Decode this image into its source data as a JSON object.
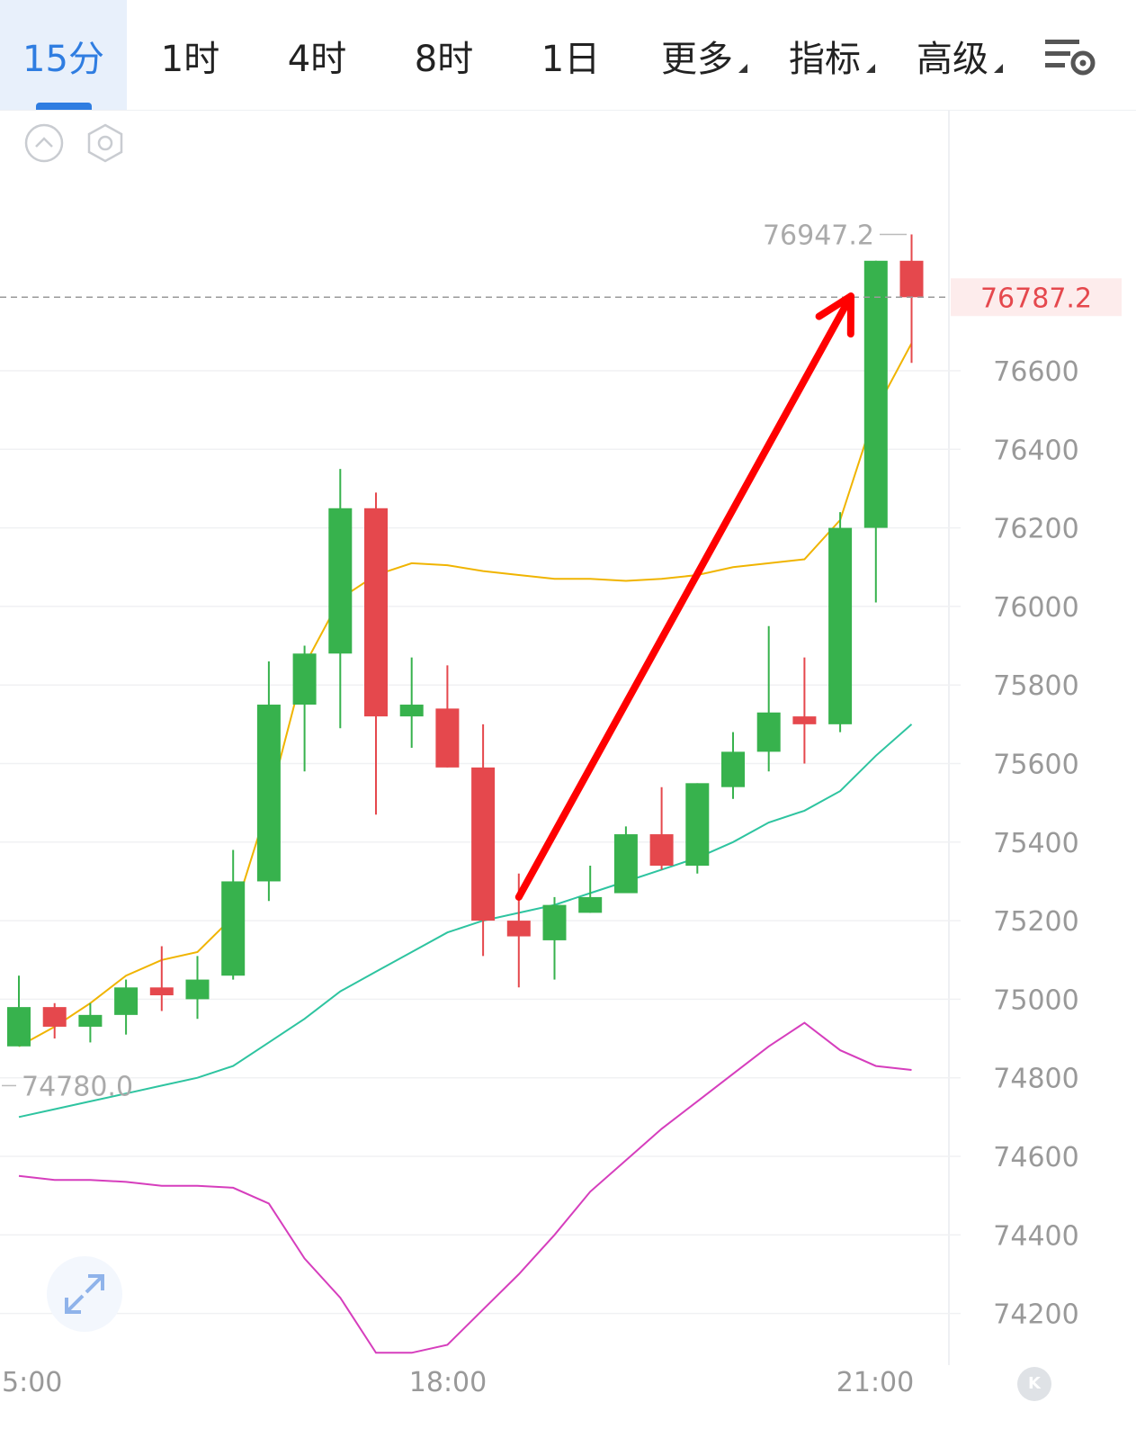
{
  "tabs": [
    {
      "label": "15分",
      "active": true
    },
    {
      "label": "1时",
      "active": false
    },
    {
      "label": "4时",
      "active": false
    },
    {
      "label": "8时",
      "active": false
    },
    {
      "label": "1日",
      "active": false
    },
    {
      "label": "更多",
      "active": false,
      "dropdown": true
    },
    {
      "label": "指标",
      "active": false,
      "dropdown": true
    },
    {
      "label": "高级",
      "active": false,
      "dropdown": true
    }
  ],
  "icons": {
    "settings": "settings-list-gear-icon",
    "collapse": "chevron-up-circle-icon",
    "hexagon": "hexagon-settings-icon",
    "expand": "expand-arrows-icon",
    "kline": "k-logo-icon"
  },
  "colors": {
    "up": "#37b24d",
    "down": "#e5484d",
    "ma_short": "#f0b400",
    "ma_long": "#2ec4a0",
    "macd_line": "#d63ebd",
    "arrow": "#ff0000",
    "accent": "#2f7de1",
    "axis_text": "#999999"
  },
  "chart_data": {
    "type": "candlestick",
    "interval": "15分",
    "y_ticks": [
      76600,
      76400,
      76200,
      76000,
      75800,
      75600,
      75400,
      75200,
      75000,
      74800,
      74600,
      74400,
      74200
    ],
    "x_ticks": [
      "5:00",
      "18:00",
      "21:00"
    ],
    "current_price": "76787.2",
    "high_marker": "76947.2",
    "low_marker": "74780.0",
    "candles": [
      {
        "open": 74880,
        "high": 75060,
        "low": 74880,
        "close": 74980
      },
      {
        "open": 74980,
        "high": 74990,
        "low": 74900,
        "close": 74930
      },
      {
        "open": 74930,
        "high": 74990,
        "low": 74890,
        "close": 74960
      },
      {
        "open": 74960,
        "high": 75050,
        "low": 74910,
        "close": 75030
      },
      {
        "open": 75030,
        "high": 75135,
        "low": 74970,
        "close": 75010
      },
      {
        "open": 75000,
        "high": 75110,
        "low": 74950,
        "close": 75050
      },
      {
        "open": 75060,
        "high": 75380,
        "low": 75050,
        "close": 75300
      },
      {
        "open": 75300,
        "high": 75860,
        "low": 75250,
        "close": 75750
      },
      {
        "open": 75750,
        "high": 75900,
        "low": 75580,
        "close": 75880
      },
      {
        "open": 75880,
        "high": 76350,
        "low": 75690,
        "close": 76250
      },
      {
        "open": 76250,
        "high": 76290,
        "low": 75470,
        "close": 75720
      },
      {
        "open": 75720,
        "high": 75870,
        "low": 75640,
        "close": 75750
      },
      {
        "open": 75740,
        "high": 75850,
        "low": 75590,
        "close": 75590
      },
      {
        "open": 75590,
        "high": 75700,
        "low": 75110,
        "close": 75200
      },
      {
        "open": 75200,
        "high": 75320,
        "low": 75030,
        "close": 75160
      },
      {
        "open": 75150,
        "high": 75260,
        "low": 75050,
        "close": 75240
      },
      {
        "open": 75220,
        "high": 75340,
        "low": 75220,
        "close": 75260
      },
      {
        "open": 75270,
        "high": 75440,
        "low": 75270,
        "close": 75420
      },
      {
        "open": 75420,
        "high": 75540,
        "low": 75330,
        "close": 75340
      },
      {
        "open": 75340,
        "high": 75550,
        "low": 75320,
        "close": 75550
      },
      {
        "open": 75540,
        "high": 75680,
        "low": 75510,
        "close": 75630
      },
      {
        "open": 75630,
        "high": 75950,
        "low": 75580,
        "close": 75730
      },
      {
        "open": 75720,
        "high": 75870,
        "low": 75600,
        "close": 75700
      },
      {
        "open": 75700,
        "high": 76240,
        "low": 75680,
        "close": 76200
      },
      {
        "open": 76200,
        "high": 76880,
        "low": 76010,
        "close": 76880
      },
      {
        "open": 76880,
        "high": 76947.2,
        "low": 76620,
        "close": 76787.2
      }
    ],
    "ma_short": [
      74880,
      74930,
      74990,
      75060,
      75100,
      75120,
      75210,
      75500,
      75850,
      76020,
      76080,
      76110,
      76105,
      76090,
      76080,
      76070,
      76070,
      76065,
      76070,
      76080,
      76100,
      76110,
      76120,
      76220,
      76500,
      76670
    ],
    "ma_long": [
      74700,
      74720,
      74740,
      74760,
      74780,
      74800,
      74830,
      74890,
      74950,
      75020,
      75070,
      75120,
      75170,
      75200,
      75220,
      75240,
      75270,
      75300,
      75330,
      75360,
      75400,
      75450,
      75480,
      75530,
      75620,
      75700
    ],
    "macd": [
      74550,
      74540,
      74540,
      74535,
      74525,
      74525,
      74520,
      74480,
      74340,
      74240,
      74100,
      74100,
      74120,
      74210,
      74300,
      74400,
      74510,
      74590,
      74670,
      74740,
      74810,
      74880,
      74940,
      74870,
      74830,
      74820
    ],
    "annotation": {
      "type": "arrow",
      "from": {
        "index": 14,
        "value": 75260
      },
      "to": {
        "index": 23.3,
        "value": 76790
      }
    }
  }
}
